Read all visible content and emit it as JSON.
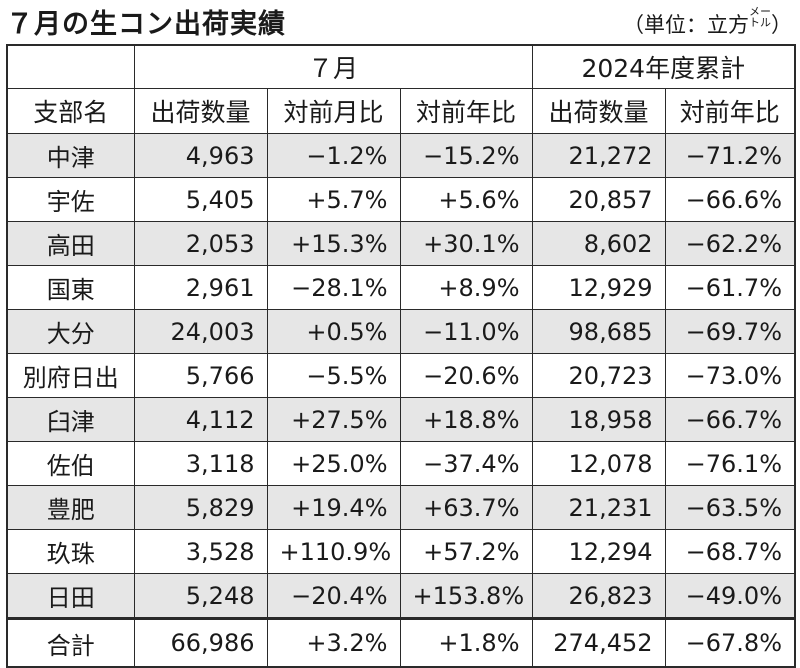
{
  "title": "７月の生コン出荷実績",
  "unit_main": "（単位：立方",
  "unit_small_top": "メー",
  "unit_small_bottom": "トル",
  "unit_close": "）",
  "header": {
    "month_group": "７月",
    "cumulative_group": "2024年度累計",
    "columns": [
      "支部名",
      "出荷数量",
      "対前月比",
      "対前年比",
      "出荷数量",
      "対前年比"
    ]
  },
  "rows": [
    [
      "中津",
      "4,963",
      "−1.2%",
      "−15.2%",
      "21,272",
      "−71.2%"
    ],
    [
      "宇佐",
      "5,405",
      "+5.7%",
      "+5.6%",
      "20,857",
      "−66.6%"
    ],
    [
      "高田",
      "2,053",
      "+15.3%",
      "+30.1%",
      "8,602",
      "−62.2%"
    ],
    [
      "国東",
      "2,961",
      "−28.1%",
      "+8.9%",
      "12,929",
      "−61.7%"
    ],
    [
      "大分",
      "24,003",
      "+0.5%",
      "−11.0%",
      "98,685",
      "−69.7%"
    ],
    [
      "別府日出",
      "5,766",
      "−5.5%",
      "−20.6%",
      "20,723",
      "−73.0%"
    ],
    [
      "臼津",
      "4,112",
      "+27.5%",
      "+18.8%",
      "18,958",
      "−66.7%"
    ],
    [
      "佐伯",
      "3,118",
      "+25.0%",
      "−37.4%",
      "12,078",
      "−76.1%"
    ],
    [
      "豊肥",
      "5,829",
      "+19.4%",
      "+63.7%",
      "21,231",
      "−63.5%"
    ],
    [
      "玖珠",
      "3,528",
      "+110.9%",
      "+57.2%",
      "12,294",
      "−68.7%"
    ],
    [
      "日田",
      "5,248",
      "−20.4%",
      "+153.8%",
      "26,823",
      "−49.0%"
    ]
  ],
  "total": [
    "合計",
    "66,986",
    "+3.2%",
    "+1.8%",
    "274,452",
    "−67.8%"
  ],
  "colors": {
    "shade": "#e6e6e6",
    "border": "#2a2a2a"
  }
}
